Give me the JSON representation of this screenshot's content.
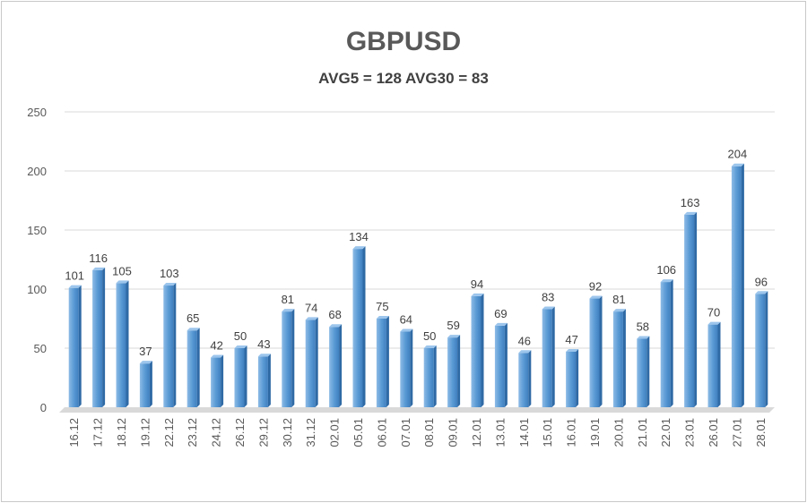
{
  "chart_data": {
    "type": "bar",
    "title": "GBPUSD",
    "subtitle": "AVG5 = 128 AVG30 = 83",
    "xlabel": "",
    "ylabel": "",
    "ylim": [
      0,
      250
    ],
    "yticks": [
      0,
      50,
      100,
      150,
      200,
      250
    ],
    "grid": true,
    "categories": [
      "16.12",
      "17.12",
      "18.12",
      "19.12",
      "22.12",
      "23.12",
      "24.12",
      "26.12",
      "29.12",
      "30.12",
      "31.12",
      "02.01",
      "05.01",
      "06.01",
      "07.01",
      "08.01",
      "09.01",
      "12.01",
      "13.01",
      "14.01",
      "15.01",
      "16.01",
      "19.01",
      "20.01",
      "21.01",
      "22.01",
      "23.01",
      "26.01",
      "27.01",
      "28.01"
    ],
    "values": [
      101,
      116,
      105,
      37,
      103,
      65,
      42,
      50,
      43,
      81,
      74,
      68,
      134,
      75,
      64,
      50,
      59,
      94,
      69,
      46,
      83,
      47,
      92,
      81,
      58,
      106,
      163,
      70,
      204,
      96
    ],
    "bar_color": "#5b9bd5"
  }
}
